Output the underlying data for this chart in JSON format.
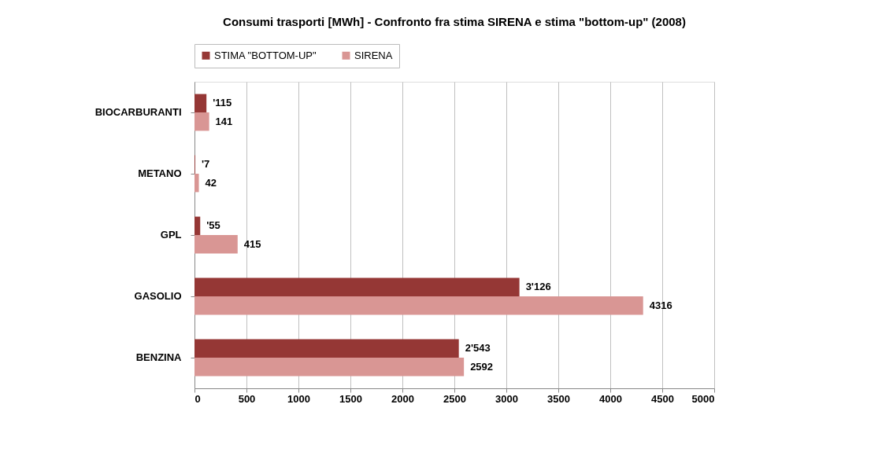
{
  "chart_data": {
    "type": "bar",
    "orientation": "horizontal",
    "title": "Consumi trasporti [MWh] - Confronto fra stima SIRENA e stima \"bottom-up\" (2008)",
    "categories": [
      "BIOCARBURANTI",
      "METANO",
      "GPL",
      "GASOLIO",
      "BENZINA"
    ],
    "series": [
      {
        "name": "STIMA \"BOTTOM-UP\"",
        "color": "#953735",
        "values": [
          115,
          7,
          55,
          3126,
          2543
        ],
        "value_labels": [
          "'115",
          "'7",
          "'55",
          "3'126",
          "2'543"
        ]
      },
      {
        "name": "SIRENA",
        "color": "#d99694",
        "values": [
          141,
          42,
          415,
          4316,
          2592
        ],
        "value_labels": [
          "141",
          "42",
          "415",
          "4316",
          "2592"
        ]
      }
    ],
    "xlim": [
      0,
      5000
    ],
    "xticks": [
      0,
      500,
      1000,
      1500,
      2000,
      2500,
      3000,
      3500,
      4000,
      4500,
      5000
    ],
    "grid": "x",
    "legend": "top"
  }
}
